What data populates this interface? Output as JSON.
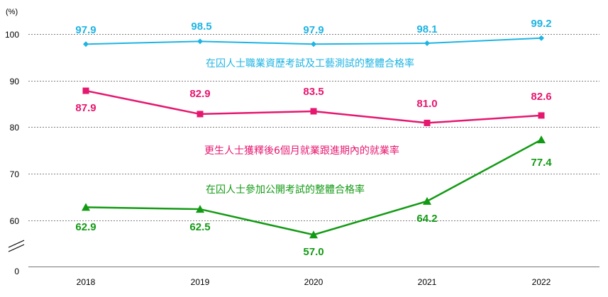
{
  "chart_data": {
    "type": "line",
    "y_unit": "(%)",
    "categories": [
      "2018",
      "2019",
      "2020",
      "2021",
      "2022"
    ],
    "y_ticks": [
      "0",
      "60",
      "70",
      "80",
      "90",
      "100"
    ],
    "y_axis_break": true,
    "ylim": [
      55,
      100
    ],
    "grid": true,
    "series": [
      {
        "name": "在囚人士職業資歷考試及工藝測試的整體合格率",
        "values": [
          97.9,
          98.5,
          97.9,
          98.1,
          99.2
        ],
        "labels": [
          "97.9",
          "98.5",
          "97.9",
          "98.1",
          "99.2"
        ],
        "color": "#1fb4e3",
        "marker": "diamond"
      },
      {
        "name": "更生人士獲釋後6個月就業跟進期內的就業率",
        "values": [
          87.9,
          82.9,
          83.5,
          81.0,
          82.6
        ],
        "labels": [
          "87.9",
          "82.9",
          "83.5",
          "81.0",
          "82.6"
        ],
        "color": "#e6176f",
        "marker": "square"
      },
      {
        "name": "在囚人士參加公開考試的整體合格率",
        "values": [
          62.9,
          62.5,
          57.0,
          64.2,
          77.4
        ],
        "labels": [
          "62.9",
          "62.5",
          "57.0",
          "64.2",
          "77.4"
        ],
        "color": "#139a14",
        "marker": "triangle"
      }
    ]
  }
}
